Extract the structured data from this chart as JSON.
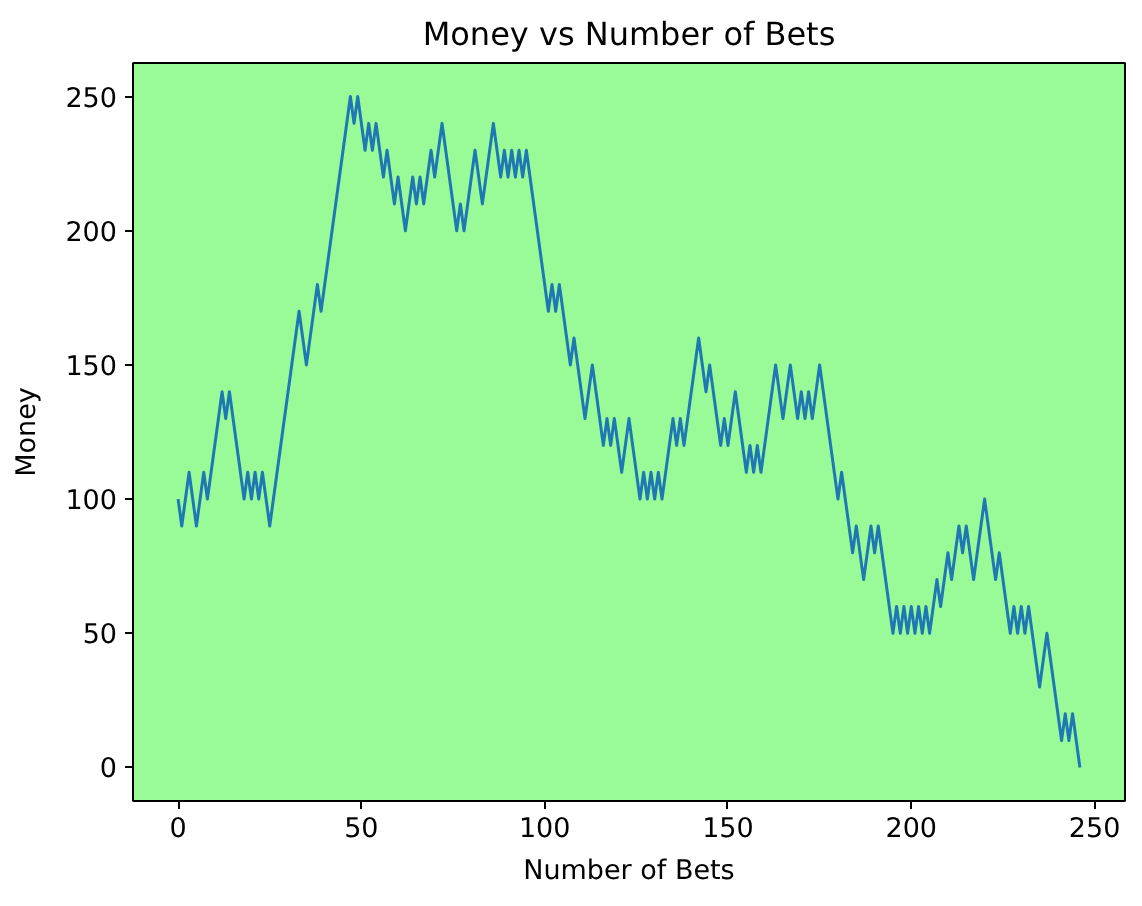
{
  "chart_data": {
    "type": "line",
    "title": "Money vs Number of Bets",
    "xlabel": "Number of Bets",
    "ylabel": "Money",
    "x": [
      0,
      1,
      3,
      5,
      7,
      8,
      12,
      13,
      14,
      18,
      19,
      20,
      21,
      22,
      23,
      25,
      33,
      35,
      38,
      39,
      47,
      48,
      49,
      51,
      52,
      53,
      54,
      56,
      57,
      59,
      60,
      62,
      64,
      65,
      66,
      67,
      69,
      70,
      72,
      76,
      77,
      78,
      81,
      83,
      86,
      88,
      89,
      90,
      91,
      92,
      93,
      94,
      95,
      101,
      102,
      103,
      104,
      107,
      108,
      111,
      113,
      116,
      117,
      118,
      119,
      121,
      123,
      126,
      127,
      128,
      129,
      130,
      131,
      132,
      135,
      136,
      137,
      138,
      142,
      144,
      145,
      148,
      149,
      150,
      152,
      155,
      156,
      157,
      158,
      159,
      163,
      165,
      167,
      169,
      170,
      171,
      172,
      173,
      175,
      180,
      181,
      184,
      185,
      187,
      189,
      190,
      191,
      195,
      196,
      197,
      198,
      199,
      200,
      201,
      202,
      203,
      204,
      205,
      207,
      208,
      210,
      211,
      213,
      214,
      215,
      217,
      220,
      223,
      224,
      227,
      228,
      229,
      230,
      231,
      232,
      235,
      237,
      241,
      242,
      243,
      244,
      246
    ],
    "series": [
      {
        "color": "#1f77b4",
        "values": [
          100,
          90,
          110,
          90,
          110,
          100,
          140,
          130,
          140,
          100,
          110,
          100,
          110,
          100,
          110,
          90,
          170,
          150,
          180,
          170,
          250,
          240,
          250,
          230,
          240,
          230,
          240,
          220,
          230,
          210,
          220,
          200,
          220,
          210,
          220,
          210,
          230,
          220,
          240,
          200,
          210,
          200,
          230,
          210,
          240,
          220,
          230,
          220,
          230,
          220,
          230,
          220,
          230,
          170,
          180,
          170,
          180,
          150,
          160,
          130,
          150,
          120,
          130,
          120,
          130,
          110,
          130,
          100,
          110,
          100,
          110,
          100,
          110,
          100,
          130,
          120,
          130,
          120,
          160,
          140,
          150,
          120,
          130,
          120,
          140,
          110,
          120,
          110,
          120,
          110,
          150,
          130,
          150,
          130,
          140,
          130,
          140,
          130,
          150,
          100,
          110,
          80,
          90,
          70,
          90,
          80,
          90,
          50,
          60,
          50,
          60,
          50,
          60,
          50,
          60,
          50,
          60,
          50,
          70,
          60,
          80,
          70,
          90,
          80,
          90,
          70,
          100,
          70,
          80,
          50,
          60,
          50,
          60,
          50,
          60,
          30,
          50,
          10,
          20,
          10,
          20,
          0
        ]
      }
    ],
    "xlim": [
      -12.3,
      258.3
    ],
    "ylim": [
      -12.5,
      262.5
    ],
    "xticks": [
      0,
      50,
      100,
      150,
      200,
      250
    ],
    "yticks": [
      0,
      50,
      100,
      150,
      200,
      250
    ],
    "grid": false,
    "marker": "none",
    "line_style": "solid"
  }
}
